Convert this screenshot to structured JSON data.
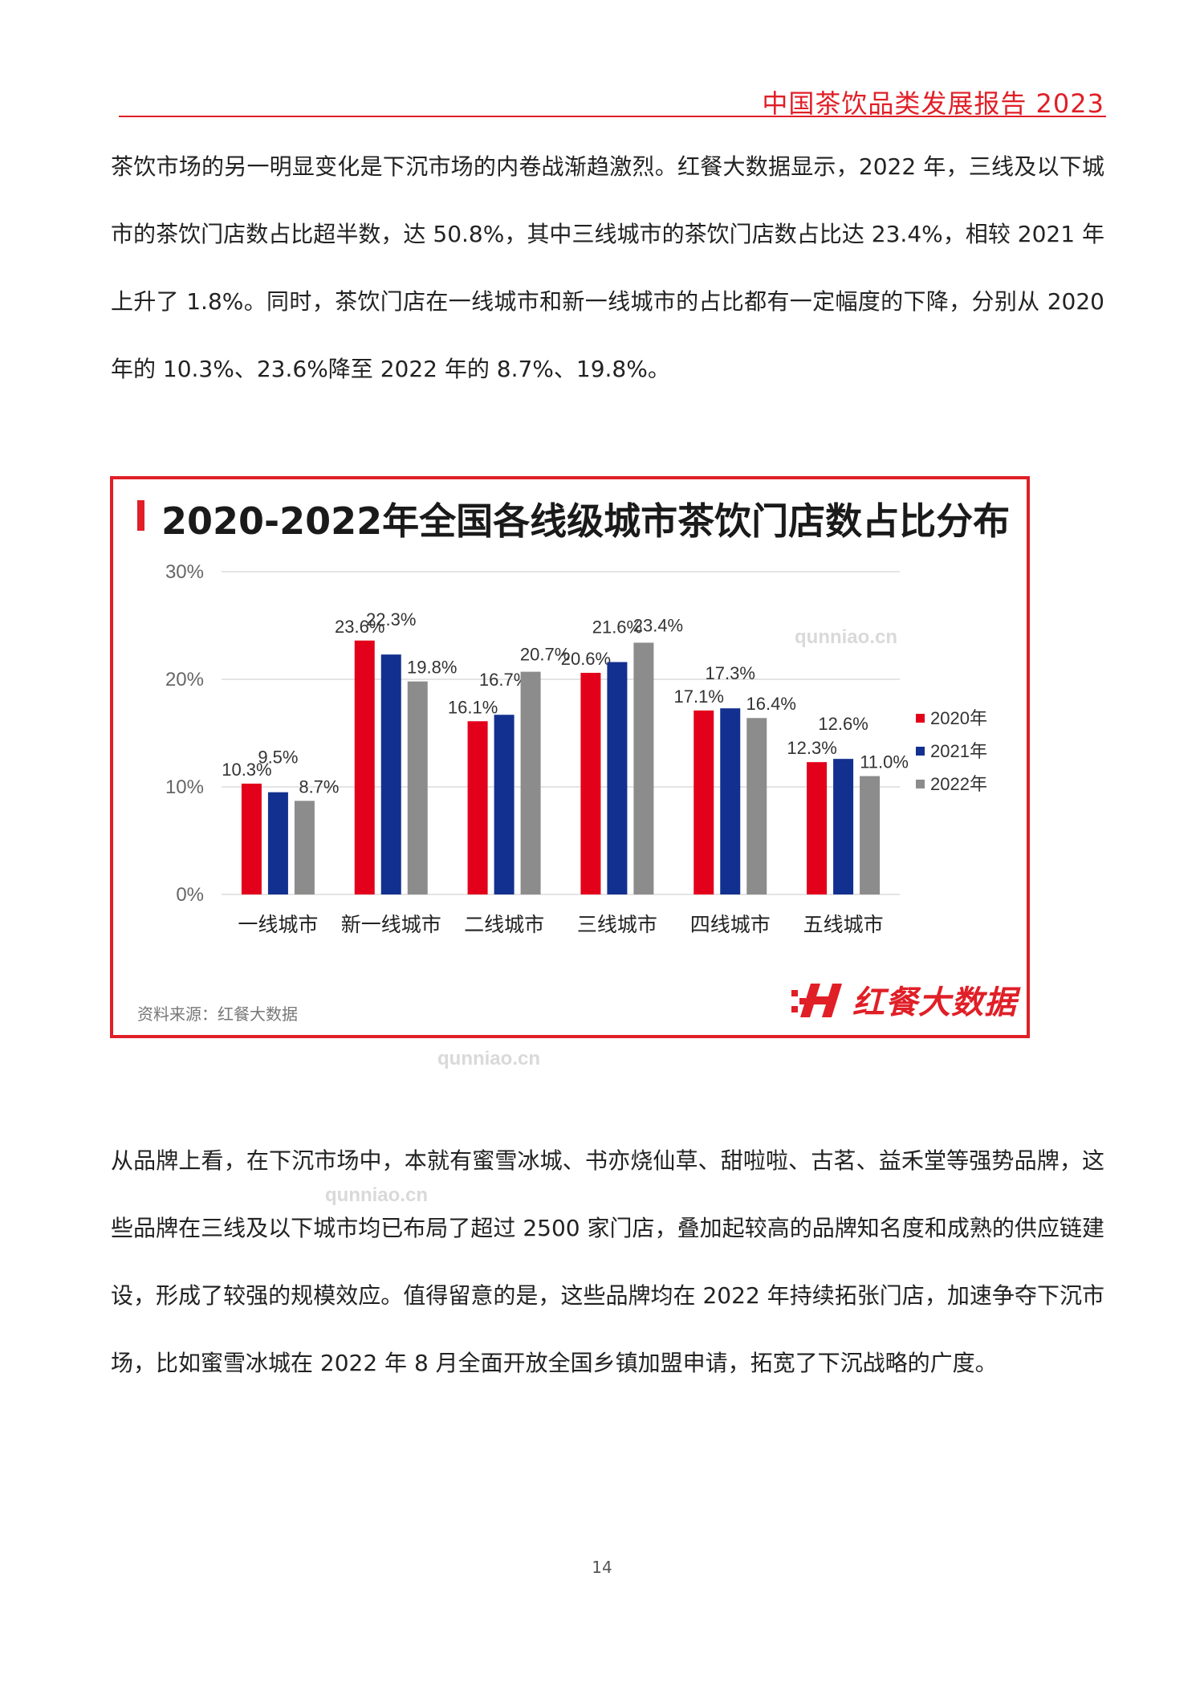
{
  "header": {
    "title": "中国茶饮品类发展报告 2023"
  },
  "paragraphs": {
    "p1": "茶饮市场的另一明显变化是下沉市场的内卷战渐趋激烈。红餐大数据显示，2022 年，三线及以下城市的茶饮门店数占比超半数，达 50.8%，其中三线城市的茶饮门店数占比达 23.4%，相较 2021 年上升了 1.8%。同时，茶饮门店在一线城市和新一线城市的占比都有一定幅度的下降，分别从 2020 年的 10.3%、23.6%降至 2022 年的 8.7%、19.8%。",
    "p2": "从品牌上看，在下沉市场中，本就有蜜雪冰城、书亦烧仙草、甜啦啦、古茗、益禾堂等强势品牌，这些品牌在三线及以下城市均已布局了超过 2500 家门店，叠加起较高的品牌知名度和成熟的供应链建设，形成了较强的规模效应。值得留意的是，这些品牌均在 2022 年持续拓张门店，加速争夺下沉市场，比如蜜雪冰城在 2022 年 8 月全面开放全国乡镇加盟申请，拓宽了下沉战略的广度。"
  },
  "chart_data": {
    "type": "bar",
    "title": "2020-2022年全国各线级城市茶饮门店数占比分布",
    "categories": [
      "一线城市",
      "新一线城市",
      "二线城市",
      "三线城市",
      "四线城市",
      "五线城市"
    ],
    "series": [
      {
        "name": "2020年",
        "color": "#e3001b",
        "values": [
          10.3,
          23.6,
          16.1,
          20.6,
          17.1,
          12.3
        ]
      },
      {
        "name": "2021年",
        "color": "#12308f",
        "values": [
          9.5,
          22.3,
          16.7,
          21.6,
          17.3,
          12.6
        ]
      },
      {
        "name": "2022年",
        "color": "#8c8c8c",
        "values": [
          8.7,
          19.8,
          20.7,
          23.4,
          16.4,
          11.0
        ]
      }
    ],
    "ylim": [
      0,
      30
    ],
    "yticks": [
      "0%",
      "10%",
      "20%",
      "30%"
    ],
    "value_suffix": "%",
    "legend_position": "right",
    "grid": true,
    "source": "资料来源：红餐大数据"
  },
  "brand": {
    "name": "红餐大数据",
    "color": "#e01f27"
  },
  "watermark": {
    "text": "qunniao.cn"
  },
  "page_number": "14"
}
